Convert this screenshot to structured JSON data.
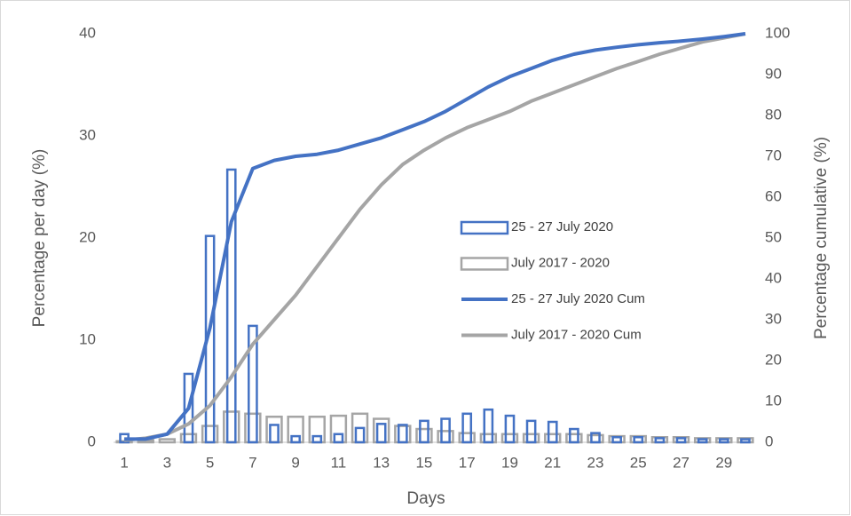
{
  "chart_data": {
    "type": "combo",
    "xlabel": "Days",
    "ylabel": "Percentage per day (%)",
    "y2label": "Percentage cumulative (%)",
    "categories": [
      1,
      null,
      3,
      null,
      5,
      null,
      7,
      null,
      9,
      null,
      11,
      null,
      13,
      null,
      15,
      null,
      17,
      null,
      19,
      null,
      21,
      null,
      23,
      null,
      25,
      null,
      27,
      null,
      29,
      null
    ],
    "ylim": [
      0,
      40
    ],
    "yticks": [
      0,
      10,
      20,
      30,
      40
    ],
    "y2lim": [
      0,
      100
    ],
    "y2ticks": [
      0,
      10,
      20,
      30,
      40,
      50,
      60,
      70,
      80,
      90,
      100
    ],
    "legend": "center-right",
    "series": [
      {
        "name": "25 - 27 July 2020",
        "type": "bar",
        "color": "#4472c4",
        "values": [
          0.8,
          0,
          0,
          6.7,
          20.2,
          26.7,
          11.4,
          1.7,
          0.6,
          0.6,
          0.8,
          1.4,
          1.8,
          1.7,
          2.1,
          2.3,
          2.8,
          3.2,
          2.6,
          2.1,
          2.0,
          1.3,
          0.9,
          0.5,
          0.5,
          0.4,
          0.4,
          0.3,
          0.3,
          0.3
        ]
      },
      {
        "name": "July 2017 - 2020",
        "type": "bar",
        "color": "#a5a5a5",
        "values": [
          0.1,
          0.2,
          0.3,
          0.8,
          1.6,
          3.0,
          2.8,
          2.5,
          2.5,
          2.5,
          2.6,
          2.8,
          2.3,
          1.6,
          1.3,
          1.1,
          0.9,
          0.8,
          0.8,
          0.8,
          0.8,
          0.8,
          0.7,
          0.6,
          0.6,
          0.5,
          0.5,
          0.4,
          0.4,
          0.4
        ]
      },
      {
        "name": "25 - 27 July 2020 Cum",
        "type": "line",
        "axis": "y2",
        "color": "#4472c4",
        "values": [
          0.8,
          0.8,
          2,
          8.3,
          28,
          54,
          67,
          69,
          70,
          70.5,
          71.5,
          73,
          74.5,
          76.5,
          78.5,
          81,
          84,
          87,
          89.5,
          91.5,
          93.5,
          95,
          96,
          96.7,
          97.3,
          97.8,
          98.2,
          98.7,
          99.3,
          100
        ]
      },
      {
        "name": "July 2017 - 2020 Cum",
        "type": "line",
        "axis": "y2",
        "color": "#a5a5a5",
        "values": [
          0.5,
          1,
          2,
          4.5,
          9,
          16,
          24,
          30,
          36,
          43,
          50,
          57,
          63,
          68,
          71.5,
          74.5,
          77,
          79,
          81,
          83.5,
          85.5,
          87.5,
          89.5,
          91.5,
          93.2,
          95,
          96.5,
          98,
          99,
          100
        ]
      }
    ]
  }
}
